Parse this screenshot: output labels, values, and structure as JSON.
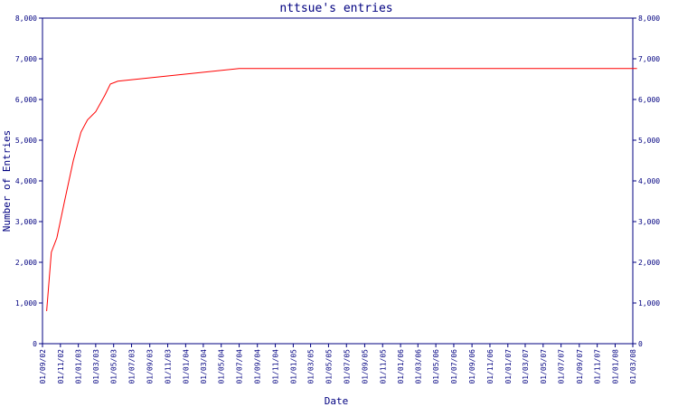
{
  "chart_data": {
    "type": "line",
    "title": "nttsue's entries",
    "xlabel": "Date",
    "ylabel": "Number of Entries",
    "ylim": [
      0,
      8000
    ],
    "yticks": [
      "0",
      "1,000",
      "2,000",
      "3,000",
      "4,000",
      "5,000",
      "6,000",
      "7,000",
      "8,000"
    ],
    "xtick_labels": [
      "01/09/02",
      "01/11/02",
      "01/01/03",
      "01/03/03",
      "01/05/03",
      "01/07/03",
      "01/09/03",
      "01/11/03",
      "01/01/04",
      "01/03/04",
      "01/05/04",
      "01/07/04",
      "01/09/04",
      "01/11/04",
      "01/01/05",
      "01/03/05",
      "01/05/05",
      "01/07/05",
      "01/09/05",
      "01/11/05",
      "01/01/06",
      "01/03/06",
      "01/05/06",
      "01/07/06",
      "01/09/06",
      "01/11/06",
      "01/01/07",
      "01/03/07",
      "01/05/07",
      "01/07/07",
      "01/09/07",
      "01/11/07",
      "01/01/08",
      "01/03/08"
    ],
    "grid": false,
    "colors": {
      "line": "#ff0000",
      "axis": "#000080"
    },
    "series": [
      {
        "x": [
          "2002-09-15",
          "2002-10-01",
          "2002-10-20",
          "2002-11-15",
          "2002-12-15",
          "2003-01-10",
          "2003-02-01",
          "2003-03-01",
          "2003-04-01",
          "2003-04-20",
          "2003-05-15",
          "2004-07-01",
          "2008-03-15"
        ],
        "y": [
          800,
          2250,
          2600,
          3500,
          4500,
          5200,
          5500,
          5700,
          6100,
          6380,
          6450,
          6760,
          6760
        ]
      }
    ]
  }
}
